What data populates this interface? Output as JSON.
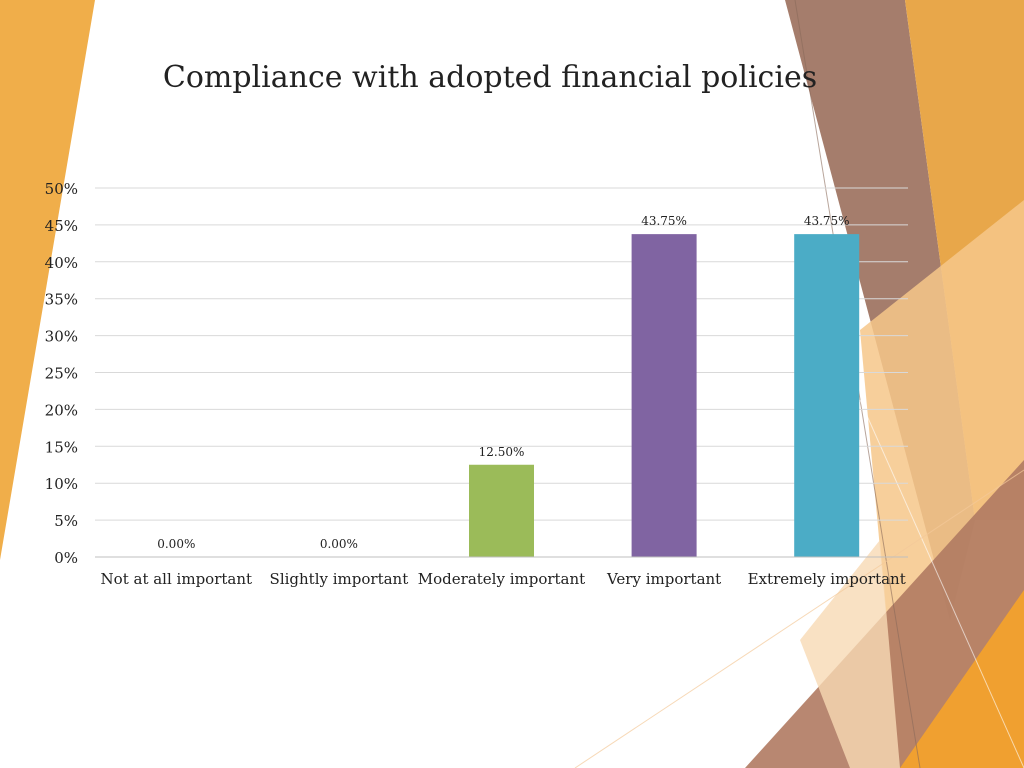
{
  "chart_data": {
    "type": "bar",
    "title": "Compliance with adopted financial policies",
    "categories": [
      "Not at all important",
      "Slightly important",
      "Moderately important",
      "Very important",
      "Extremely important"
    ],
    "values": [
      0.0,
      0.0,
      12.5,
      43.75,
      43.75
    ],
    "data_labels": [
      "0.00%",
      "0.00%",
      "12.50%",
      "43.75%",
      "43.75%"
    ],
    "bar_colors": [
      "#9bbb59",
      "#9bbb59",
      "#9bbb59",
      "#8064a2",
      "#4bacc6"
    ],
    "ylim": [
      0,
      50
    ],
    "yticks": [
      0,
      5,
      10,
      15,
      20,
      25,
      30,
      35,
      40,
      45,
      50
    ],
    "ytick_labels": [
      "0%",
      "5%",
      "10%",
      "15%",
      "20%",
      "25%",
      "30%",
      "35%",
      "40%",
      "45%",
      "50%"
    ],
    "xlabel": "",
    "ylabel": "",
    "grid": true,
    "legend": "none"
  },
  "theme": {
    "gridline_color": "#d9d9d9",
    "axis_color": "#bfbfbf",
    "text_color": "#222222"
  }
}
